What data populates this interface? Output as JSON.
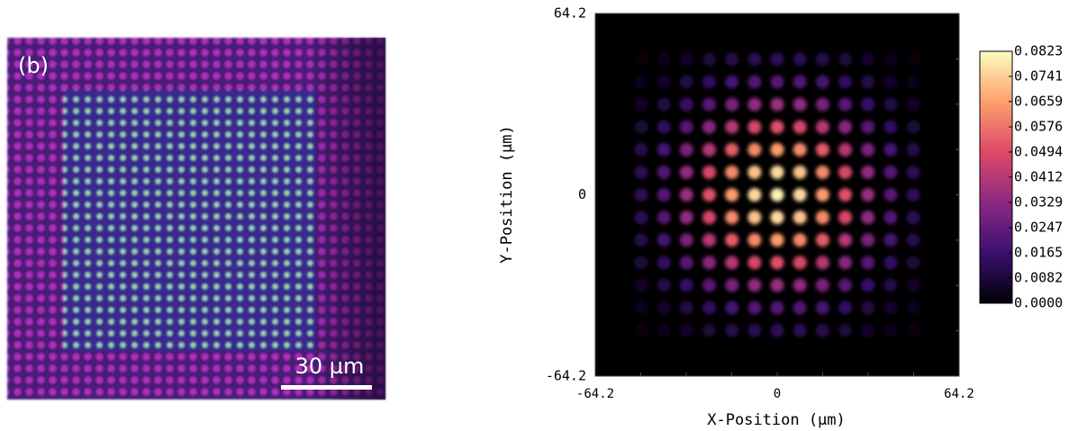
{
  "image_panel": {
    "label": "(b)",
    "scale_bar": "30 µm"
  },
  "chart_data": {
    "type": "heatmap",
    "xlabel": "X-Position (µm)",
    "ylabel": "Y-Position (µm)",
    "xlim": [
      -64.2,
      64.2
    ],
    "ylim": [
      -64.2,
      64.2
    ],
    "xticks": [
      -64.2,
      0,
      64.2
    ],
    "yticks": [
      -64.2,
      0,
      64.2
    ],
    "x": [
      -48,
      -40,
      -32,
      -24,
      -16,
      -8,
      0,
      8,
      16,
      24,
      32,
      40,
      48
    ],
    "y": [
      -48,
      -40,
      -32,
      -24,
      -16,
      -8,
      0,
      8,
      16,
      24,
      32,
      40,
      48
    ],
    "zlim": [
      0,
      0.0823
    ],
    "zticks": [
      {
        "value": 0,
        "label": "0.0000"
      },
      0.0082,
      0.0165,
      0.0247,
      0.0329,
      0.0412,
      0.0494,
      0.0576,
      0.0659,
      0.0741,
      0.0823
    ],
    "colormap": [
      "#000004",
      "#3b0f70",
      "#8c2981",
      "#de4968",
      "#fe9f6d",
      "#fcfdbf"
    ],
    "z": [
      [
        0.002,
        0.0035,
        0.0056,
        0.008,
        0.0103,
        0.012,
        0.0126,
        0.012,
        0.0103,
        0.008,
        0.0056,
        0.0035,
        0.002
      ],
      [
        0.0035,
        0.0062,
        0.0098,
        0.014,
        0.0181,
        0.0211,
        0.0222,
        0.0211,
        0.0181,
        0.014,
        0.0098,
        0.0062,
        0.0035
      ],
      [
        0.0056,
        0.0098,
        0.0156,
        0.0223,
        0.0288,
        0.0335,
        0.0353,
        0.0335,
        0.0288,
        0.0223,
        0.0156,
        0.0098,
        0.0056
      ],
      [
        0.008,
        0.014,
        0.0223,
        0.0319,
        0.0411,
        0.048,
        0.0505,
        0.048,
        0.0411,
        0.0319,
        0.0223,
        0.014,
        0.008
      ],
      [
        0.0103,
        0.0181,
        0.0288,
        0.0411,
        0.0531,
        0.0619,
        0.0652,
        0.0619,
        0.0531,
        0.0411,
        0.0288,
        0.0181,
        0.0103
      ],
      [
        0.012,
        0.0211,
        0.0335,
        0.048,
        0.0619,
        0.0722,
        0.076,
        0.0722,
        0.0619,
        0.048,
        0.0335,
        0.0211,
        0.012
      ],
      [
        0.0126,
        0.0222,
        0.0353,
        0.0505,
        0.0652,
        0.076,
        0.08,
        0.076,
        0.0652,
        0.0505,
        0.0353,
        0.0222,
        0.0126
      ],
      [
        0.012,
        0.0211,
        0.0335,
        0.048,
        0.0619,
        0.0722,
        0.076,
        0.0722,
        0.0619,
        0.048,
        0.0335,
        0.0211,
        0.012
      ],
      [
        0.0103,
        0.0181,
        0.0288,
        0.0411,
        0.0531,
        0.0619,
        0.0652,
        0.0619,
        0.0531,
        0.0411,
        0.0288,
        0.0181,
        0.0103
      ],
      [
        0.008,
        0.014,
        0.0223,
        0.0319,
        0.0411,
        0.048,
        0.0505,
        0.048,
        0.0411,
        0.0319,
        0.0223,
        0.014,
        0.008
      ],
      [
        0.0056,
        0.0098,
        0.0156,
        0.0223,
        0.0288,
        0.0335,
        0.0353,
        0.0335,
        0.0288,
        0.0223,
        0.0156,
        0.0098,
        0.0056
      ],
      [
        0.0035,
        0.0062,
        0.0098,
        0.014,
        0.0181,
        0.0211,
        0.0222,
        0.0211,
        0.0181,
        0.014,
        0.0098,
        0.0062,
        0.0035
      ],
      [
        0.002,
        0.0035,
        0.0056,
        0.008,
        0.0103,
        0.012,
        0.0126,
        0.012,
        0.0103,
        0.008,
        0.0056,
        0.0035,
        0.002
      ]
    ]
  }
}
